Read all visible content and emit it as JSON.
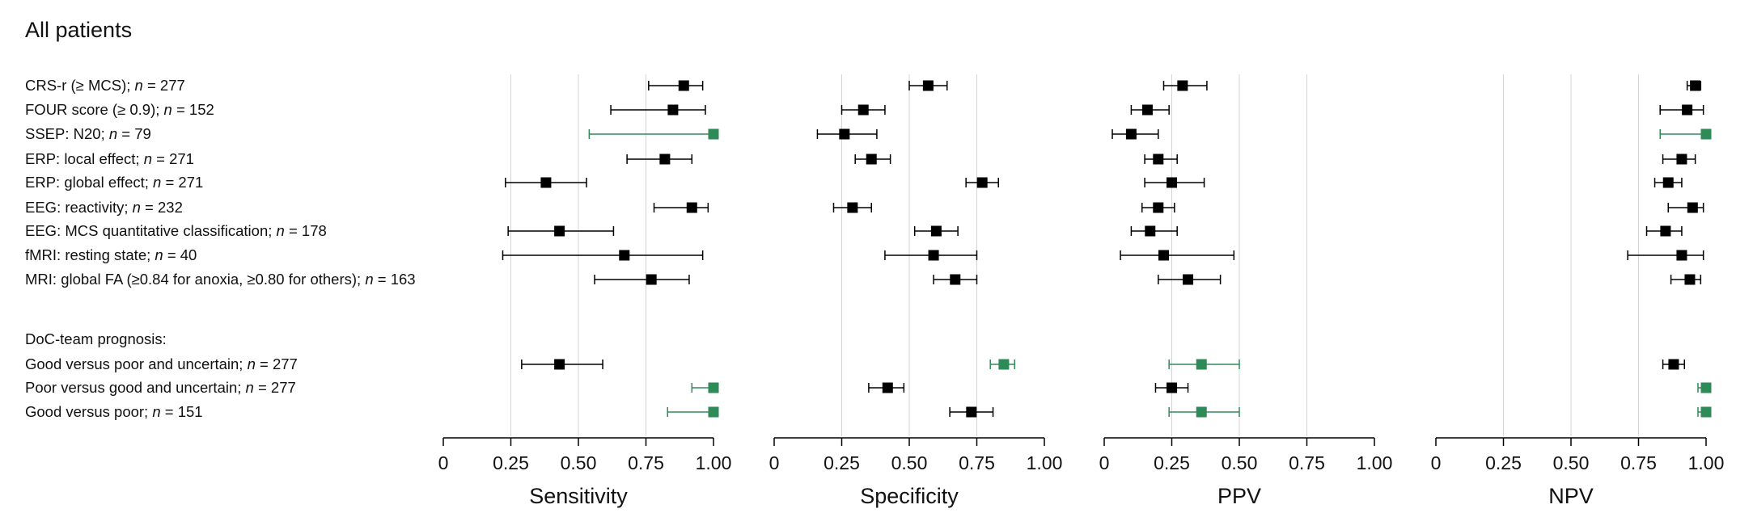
{
  "title": "All patients",
  "chart_data": {
    "type": "forest",
    "title": "All patients",
    "xlim": [
      0,
      1
    ],
    "ticks": [
      0,
      0.25,
      0.5,
      0.75,
      1.0
    ],
    "tick_labels": [
      "0",
      "0.25",
      "0.50",
      "0.75",
      "1.00"
    ],
    "gridlines": [
      0.25,
      0.5,
      0.75
    ],
    "colors": {
      "default": "#000000",
      "highlight": "#2e8b57",
      "grid": "#d4d4d4"
    },
    "rows": [
      {
        "id": "crs-r",
        "label": "CRS-r (≥ MCS); ",
        "n_label": "n = 277"
      },
      {
        "id": "four",
        "label": "FOUR score (≥ 0.9); ",
        "n_label": "n = 152"
      },
      {
        "id": "ssep",
        "label": "SSEP: N20; ",
        "n_label": "n = 79"
      },
      {
        "id": "erp-local",
        "label": "ERP: local effect; ",
        "n_label": "n = 271"
      },
      {
        "id": "erp-global",
        "label": "ERP: global effect; ",
        "n_label": "n = 271"
      },
      {
        "id": "eeg-react",
        "label": "EEG: reactivity; ",
        "n_label": "n = 232"
      },
      {
        "id": "eeg-mcs",
        "label": "EEG: MCS quantitative classification; ",
        "n_label": "n = 178"
      },
      {
        "id": "fmri",
        "label": "fMRI: resting state; ",
        "n_label": "n = 40"
      },
      {
        "id": "mri",
        "label": "MRI: global FA (≥0.84 for anoxia, ≥0.80 for others); ",
        "n_label": "n = 163"
      },
      {
        "id": "doc-header",
        "label": "DoC-team prognosis:",
        "n_label": "",
        "header": true
      },
      {
        "id": "good-vs-poor-unc",
        "label": "Good versus poor and uncertain; ",
        "n_label": "n = 277"
      },
      {
        "id": "poor-vs-good-unc",
        "label": "Poor versus good and uncertain; ",
        "n_label": "n = 277"
      },
      {
        "id": "good-vs-poor",
        "label": "Good versus poor; ",
        "n_label": "n = 151"
      }
    ],
    "panels": [
      {
        "name": "Sensitivity",
        "estimates": [
          {
            "row": 0,
            "est": 0.89,
            "lo": 0.76,
            "hi": 0.96,
            "highlight": false
          },
          {
            "row": 1,
            "est": 0.85,
            "lo": 0.62,
            "hi": 0.97,
            "highlight": false
          },
          {
            "row": 2,
            "est": 1.0,
            "lo": 0.54,
            "hi": 1.0,
            "highlight": true
          },
          {
            "row": 3,
            "est": 0.82,
            "lo": 0.68,
            "hi": 0.92,
            "highlight": false
          },
          {
            "row": 4,
            "est": 0.38,
            "lo": 0.23,
            "hi": 0.53,
            "highlight": false
          },
          {
            "row": 5,
            "est": 0.92,
            "lo": 0.78,
            "hi": 0.98,
            "highlight": false
          },
          {
            "row": 6,
            "est": 0.43,
            "lo": 0.24,
            "hi": 0.63,
            "highlight": false
          },
          {
            "row": 7,
            "est": 0.67,
            "lo": 0.22,
            "hi": 0.96,
            "highlight": false
          },
          {
            "row": 8,
            "est": 0.77,
            "lo": 0.56,
            "hi": 0.91,
            "highlight": false
          },
          {
            "row": 10,
            "est": 0.43,
            "lo": 0.29,
            "hi": 0.59,
            "highlight": false
          },
          {
            "row": 11,
            "est": 1.0,
            "lo": 0.92,
            "hi": 1.0,
            "highlight": true
          },
          {
            "row": 12,
            "est": 1.0,
            "lo": 0.83,
            "hi": 1.0,
            "highlight": true
          }
        ]
      },
      {
        "name": "Specificity",
        "estimates": [
          {
            "row": 0,
            "est": 0.57,
            "lo": 0.5,
            "hi": 0.64,
            "highlight": false
          },
          {
            "row": 1,
            "est": 0.33,
            "lo": 0.25,
            "hi": 0.41,
            "highlight": false
          },
          {
            "row": 2,
            "est": 0.26,
            "lo": 0.16,
            "hi": 0.38,
            "highlight": false
          },
          {
            "row": 3,
            "est": 0.36,
            "lo": 0.3,
            "hi": 0.43,
            "highlight": false
          },
          {
            "row": 4,
            "est": 0.77,
            "lo": 0.71,
            "hi": 0.83,
            "highlight": false
          },
          {
            "row": 5,
            "est": 0.29,
            "lo": 0.22,
            "hi": 0.36,
            "highlight": false
          },
          {
            "row": 6,
            "est": 0.6,
            "lo": 0.52,
            "hi": 0.68,
            "highlight": false
          },
          {
            "row": 7,
            "est": 0.59,
            "lo": 0.41,
            "hi": 0.75,
            "highlight": false
          },
          {
            "row": 8,
            "est": 0.67,
            "lo": 0.59,
            "hi": 0.75,
            "highlight": false
          },
          {
            "row": 10,
            "est": 0.85,
            "lo": 0.8,
            "hi": 0.89,
            "highlight": true
          },
          {
            "row": 11,
            "est": 0.42,
            "lo": 0.35,
            "hi": 0.48,
            "highlight": false
          },
          {
            "row": 12,
            "est": 0.73,
            "lo": 0.65,
            "hi": 0.81,
            "highlight": false
          }
        ]
      },
      {
        "name": "PPV",
        "estimates": [
          {
            "row": 0,
            "est": 0.29,
            "lo": 0.22,
            "hi": 0.38,
            "highlight": false
          },
          {
            "row": 1,
            "est": 0.16,
            "lo": 0.1,
            "hi": 0.24,
            "highlight": false
          },
          {
            "row": 2,
            "est": 0.1,
            "lo": 0.03,
            "hi": 0.2,
            "highlight": false
          },
          {
            "row": 3,
            "est": 0.2,
            "lo": 0.15,
            "hi": 0.27,
            "highlight": false
          },
          {
            "row": 4,
            "est": 0.25,
            "lo": 0.15,
            "hi": 0.37,
            "highlight": false
          },
          {
            "row": 5,
            "est": 0.2,
            "lo": 0.14,
            "hi": 0.26,
            "highlight": false
          },
          {
            "row": 6,
            "est": 0.17,
            "lo": 0.1,
            "hi": 0.27,
            "highlight": false
          },
          {
            "row": 7,
            "est": 0.22,
            "lo": 0.06,
            "hi": 0.48,
            "highlight": false
          },
          {
            "row": 8,
            "est": 0.31,
            "lo": 0.2,
            "hi": 0.43,
            "highlight": false
          },
          {
            "row": 10,
            "est": 0.36,
            "lo": 0.24,
            "hi": 0.5,
            "highlight": true
          },
          {
            "row": 11,
            "est": 0.25,
            "lo": 0.19,
            "hi": 0.31,
            "highlight": false
          },
          {
            "row": 12,
            "est": 0.36,
            "lo": 0.24,
            "hi": 0.5,
            "highlight": true
          }
        ]
      },
      {
        "name": "NPV",
        "estimates": [
          {
            "row": 0,
            "est": 0.96,
            "lo": 0.93,
            "hi": 0.98,
            "highlight": false
          },
          {
            "row": 1,
            "est": 0.93,
            "lo": 0.83,
            "hi": 0.99,
            "highlight": false
          },
          {
            "row": 2,
            "est": 1.0,
            "lo": 0.83,
            "hi": 1.0,
            "highlight": true
          },
          {
            "row": 3,
            "est": 0.91,
            "lo": 0.84,
            "hi": 0.96,
            "highlight": false
          },
          {
            "row": 4,
            "est": 0.86,
            "lo": 0.81,
            "hi": 0.91,
            "highlight": false
          },
          {
            "row": 5,
            "est": 0.95,
            "lo": 0.86,
            "hi": 0.99,
            "highlight": false
          },
          {
            "row": 6,
            "est": 0.85,
            "lo": 0.78,
            "hi": 0.91,
            "highlight": false
          },
          {
            "row": 7,
            "est": 0.91,
            "lo": 0.71,
            "hi": 0.99,
            "highlight": false
          },
          {
            "row": 8,
            "est": 0.94,
            "lo": 0.87,
            "hi": 0.98,
            "highlight": false
          },
          {
            "row": 10,
            "est": 0.88,
            "lo": 0.84,
            "hi": 0.92,
            "highlight": false
          },
          {
            "row": 11,
            "est": 1.0,
            "lo": 0.97,
            "hi": 1.0,
            "highlight": true
          },
          {
            "row": 12,
            "est": 1.0,
            "lo": 0.97,
            "hi": 1.0,
            "highlight": true
          }
        ]
      }
    ]
  }
}
